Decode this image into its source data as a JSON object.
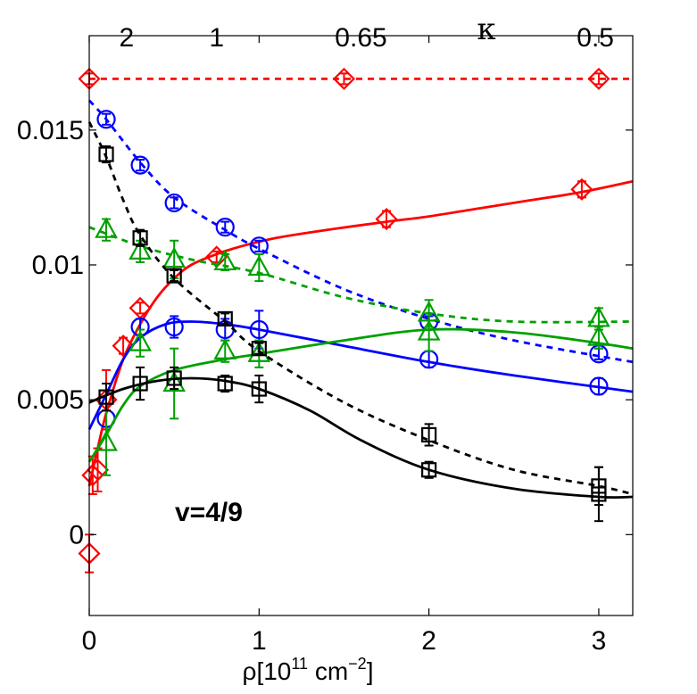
{
  "chart_data": {
    "type": "line",
    "title": "",
    "xlabel": "ρ[10",
    "xlabel_exp1": "11",
    "xlabel_mid": " cm",
    "xlabel_exp2": "−2",
    "xlabel_end": "]",
    "xlim": [
      0,
      3.2
    ],
    "ylim": [
      -0.003,
      0.0185
    ],
    "x_ticks": [
      {
        "v": 0,
        "label": "0"
      },
      {
        "v": 1,
        "label": "1"
      },
      {
        "v": 2,
        "label": "2"
      },
      {
        "v": 3,
        "label": "3"
      }
    ],
    "y_ticks": [
      {
        "v": 0,
        "label": "0"
      },
      {
        "v": 0.005,
        "label": "0.005"
      },
      {
        "v": 0.01,
        "label": "0.01"
      },
      {
        "v": 0.015,
        "label": "0.015"
      }
    ],
    "top_axis": {
      "label": "κ",
      "ticks": [
        {
          "v": 0.22,
          "label": "2"
        },
        {
          "v": 0.75,
          "label": "1"
        },
        {
          "v": 1.6,
          "label": "0.65"
        },
        {
          "v": 2.98,
          "label": "0.5"
        }
      ]
    },
    "annotation": "v=4/9",
    "colors": {
      "red": "#ff0000",
      "blue": "#0000ff",
      "green": "#00a000",
      "black": "#000000"
    },
    "series": [
      {
        "name": "red-dashed",
        "color": "#ff0000",
        "marker": "diamond",
        "line": "dashed",
        "points": [
          [
            0,
            0.0169,
            0.0002
          ],
          [
            1.5,
            0.0169,
            0.0002
          ],
          [
            3.0,
            0.0169,
            0.0002
          ]
        ],
        "curve": [
          [
            0,
            0.0169
          ],
          [
            3.2,
            0.0169
          ]
        ]
      },
      {
        "name": "red-solid",
        "color": "#ff0000",
        "marker": "diamond",
        "line": "solid",
        "points": [
          [
            0,
            -0.0007,
            0.0007
          ],
          [
            0.02,
            0.0022,
            0.0007
          ],
          [
            0.05,
            0.0024,
            0.0008
          ],
          [
            0.1,
            0.005,
            0.0011
          ],
          [
            0.2,
            0.007,
            0.0003
          ],
          [
            0.3,
            0.0084,
            0.0002
          ],
          [
            0.75,
            0.0103,
            0.0002
          ],
          [
            1.75,
            0.0117,
            0.0003
          ],
          [
            2.9,
            0.0128,
            0.0003
          ]
        ],
        "curve": [
          [
            0,
            0.0018
          ],
          [
            0.05,
            0.0032
          ],
          [
            0.1,
            0.0045
          ],
          [
            0.2,
            0.0065
          ],
          [
            0.3,
            0.0078
          ],
          [
            0.4,
            0.0088
          ],
          [
            0.5,
            0.0095
          ],
          [
            0.6,
            0.01
          ],
          [
            0.75,
            0.0104
          ],
          [
            0.9,
            0.0107
          ],
          [
            1.1,
            0.011
          ],
          [
            1.4,
            0.0113
          ],
          [
            1.75,
            0.0116
          ],
          [
            2.0,
            0.0118
          ],
          [
            2.3,
            0.0121
          ],
          [
            2.6,
            0.0124
          ],
          [
            2.9,
            0.0127
          ],
          [
            3.2,
            0.0131
          ]
        ]
      },
      {
        "name": "blue-dashed",
        "color": "#0000ff",
        "marker": "circle",
        "line": "dashed",
        "points": [
          [
            0.1,
            0.0154,
            0.0002
          ],
          [
            0.3,
            0.0137,
            0.0002
          ],
          [
            0.5,
            0.0123,
            0.0002
          ],
          [
            0.8,
            0.0114,
            0.0002
          ],
          [
            1.0,
            0.0107,
            0.0002
          ],
          [
            2.0,
            0.0079,
            0.0002
          ],
          [
            3.0,
            0.0067,
            0.0002
          ]
        ],
        "curve": [
          [
            0,
            0.0161
          ],
          [
            0.1,
            0.0154
          ],
          [
            0.3,
            0.0138
          ],
          [
            0.5,
            0.0125
          ],
          [
            0.8,
            0.0113
          ],
          [
            1.0,
            0.0106
          ],
          [
            1.5,
            0.0091
          ],
          [
            2.0,
            0.008
          ],
          [
            2.5,
            0.0072
          ],
          [
            3.2,
            0.0064
          ]
        ]
      },
      {
        "name": "blue-solid",
        "color": "#0000ff",
        "marker": "circle",
        "line": "solid",
        "points": [
          [
            0.1,
            0.0043,
            0.0003
          ],
          [
            0.3,
            0.0077,
            0.0003
          ],
          [
            0.5,
            0.0077,
            0.0004
          ],
          [
            0.8,
            0.0076,
            0.0004
          ],
          [
            1.0,
            0.0076,
            0.0007
          ],
          [
            2.0,
            0.0065,
            0.0003
          ],
          [
            3.0,
            0.0055,
            0.0003
          ]
        ],
        "curve": [
          [
            0,
            0.0039
          ],
          [
            0.1,
            0.0052
          ],
          [
            0.2,
            0.0065
          ],
          [
            0.3,
            0.0073
          ],
          [
            0.45,
            0.0078
          ],
          [
            0.6,
            0.0079
          ],
          [
            0.8,
            0.0078
          ],
          [
            1.0,
            0.0076
          ],
          [
            1.5,
            0.007
          ],
          [
            2.0,
            0.0064
          ],
          [
            2.5,
            0.0059
          ],
          [
            3.2,
            0.0053
          ]
        ]
      },
      {
        "name": "green-dashed",
        "color": "#00a000",
        "marker": "triangle",
        "line": "dashed",
        "points": [
          [
            0.1,
            0.0113,
            0.0004
          ],
          [
            0.3,
            0.0105,
            0.0004
          ],
          [
            0.5,
            0.0102,
            0.0007
          ],
          [
            0.8,
            0.0101,
            0.0003
          ],
          [
            1.0,
            0.0099,
            0.0005
          ],
          [
            2.0,
            0.0082,
            0.0005
          ],
          [
            3.0,
            0.008,
            0.0004
          ]
        ],
        "curve": [
          [
            0,
            0.0114
          ],
          [
            0.3,
            0.0107
          ],
          [
            0.6,
            0.0102
          ],
          [
            1.0,
            0.0097
          ],
          [
            1.5,
            0.0088
          ],
          [
            2.0,
            0.0082
          ],
          [
            2.5,
            0.0079
          ],
          [
            3.2,
            0.0079
          ]
        ]
      },
      {
        "name": "green-solid",
        "color": "#00a000",
        "marker": "triangle",
        "line": "solid",
        "points": [
          [
            0.1,
            0.0034,
            0.0012
          ],
          [
            0.3,
            0.0071,
            0.0005
          ],
          [
            0.5,
            0.0056,
            0.0013
          ],
          [
            0.8,
            0.0068,
            0.0004
          ],
          [
            1.0,
            0.0067,
            0.0005
          ],
          [
            2.0,
            0.0075,
            0.0007
          ],
          [
            3.0,
            0.0073,
            0.0004
          ]
        ],
        "curve": [
          [
            0,
            0.0027
          ],
          [
            0.1,
            0.0037
          ],
          [
            0.2,
            0.0048
          ],
          [
            0.3,
            0.0055
          ],
          [
            0.5,
            0.0061
          ],
          [
            0.8,
            0.0065
          ],
          [
            1.0,
            0.0067
          ],
          [
            1.5,
            0.0072
          ],
          [
            2.0,
            0.0076
          ],
          [
            2.5,
            0.0075
          ],
          [
            3.0,
            0.0071
          ],
          [
            3.2,
            0.0069
          ]
        ]
      },
      {
        "name": "black-dashed",
        "color": "#000000",
        "marker": "square",
        "line": "dashed",
        "points": [
          [
            0.1,
            0.0141,
            0.0003
          ],
          [
            0.3,
            0.011,
            0.0003
          ],
          [
            0.5,
            0.0096,
            0.0002
          ],
          [
            0.8,
            0.008,
            0.0002
          ],
          [
            1.0,
            0.0069,
            0.0002
          ],
          [
            2.0,
            0.0037,
            0.0004
          ],
          [
            3.0,
            0.0018,
            0.0007
          ]
        ],
        "curve": [
          [
            0,
            0.0153
          ],
          [
            0.1,
            0.014
          ],
          [
            0.2,
            0.0124
          ],
          [
            0.3,
            0.0111
          ],
          [
            0.5,
            0.0095
          ],
          [
            0.8,
            0.0079
          ],
          [
            1.0,
            0.0068
          ],
          [
            1.5,
            0.0049
          ],
          [
            2.0,
            0.0035
          ],
          [
            2.5,
            0.0024
          ],
          [
            3.0,
            0.0018
          ],
          [
            3.2,
            0.0015
          ]
        ]
      },
      {
        "name": "black-solid",
        "color": "#000000",
        "marker": "square",
        "line": "solid",
        "points": [
          [
            0.1,
            0.0051,
            0.0005
          ],
          [
            0.3,
            0.0056,
            0.0006
          ],
          [
            0.5,
            0.0058,
            0.0004
          ],
          [
            0.8,
            0.0056,
            0.0003
          ],
          [
            1.0,
            0.0054,
            0.0005
          ],
          [
            2.0,
            0.0024,
            0.0003
          ],
          [
            3.0,
            0.0015,
            0.001
          ]
        ],
        "curve": [
          [
            0,
            0.0049
          ],
          [
            0.2,
            0.0054
          ],
          [
            0.4,
            0.0057
          ],
          [
            0.6,
            0.0058
          ],
          [
            0.8,
            0.0057
          ],
          [
            1.0,
            0.0054
          ],
          [
            1.3,
            0.0046
          ],
          [
            1.6,
            0.0035
          ],
          [
            2.0,
            0.0024
          ],
          [
            2.5,
            0.0017
          ],
          [
            3.0,
            0.0014
          ],
          [
            3.2,
            0.0014
          ]
        ]
      }
    ]
  }
}
